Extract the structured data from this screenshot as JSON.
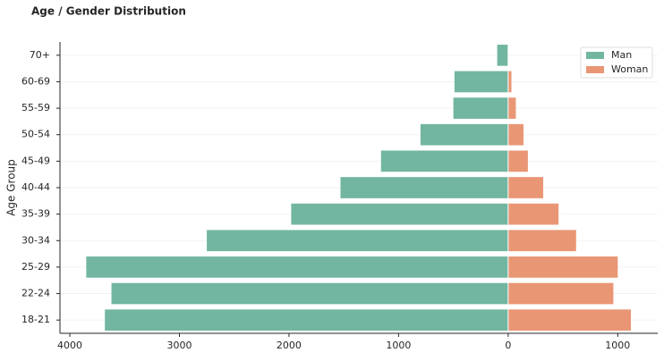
{
  "chart_data": {
    "type": "bar",
    "orientation": "horizontal",
    "title": "Age / Gender Distribution",
    "ylabel": "Age Group",
    "categories": [
      "70+",
      "60-69",
      "55-59",
      "50-54",
      "45-49",
      "40-44",
      "35-39",
      "30-34",
      "25-29",
      "22-24",
      "18-21"
    ],
    "series": [
      {
        "name": "Man",
        "color": "#72b6a1",
        "values": [
          -100,
          -490,
          -500,
          -800,
          -1160,
          -1530,
          -1980,
          -2750,
          -3850,
          -3620,
          -3680
        ]
      },
      {
        "name": "Woman",
        "color": "#e99675",
        "values": [
          0,
          30,
          70,
          140,
          180,
          320,
          460,
          620,
          1000,
          960,
          1120
        ]
      }
    ],
    "xlim": [
      -4090,
      1365
    ],
    "xticks": [
      {
        "value": -4000,
        "label": "4000"
      },
      {
        "value": -3000,
        "label": "3000"
      },
      {
        "value": -2000,
        "label": "2000"
      },
      {
        "value": -1000,
        "label": "1000"
      },
      0,
      1000
    ],
    "grid": true,
    "legend": "upper right"
  }
}
